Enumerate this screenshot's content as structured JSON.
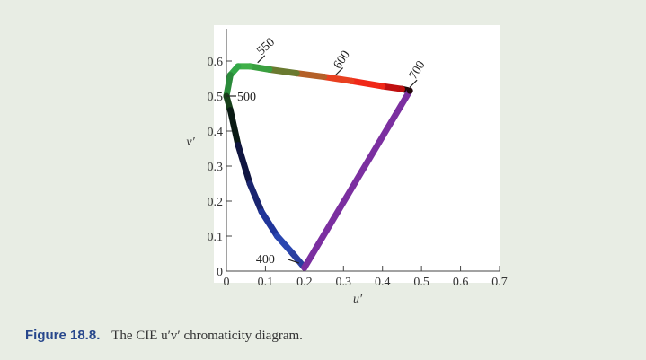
{
  "caption": {
    "figure_number": "Figure 18.8.",
    "text": "The CIE u′v′ chromaticity diagram."
  },
  "colors": {
    "page_background": "#e8ede4",
    "plot_background": "#ffffff",
    "caption_number": "#27478c",
    "line_of_purples": "#7b2fa0"
  },
  "chart_data": {
    "type": "line",
    "title": "",
    "xlabel": "u′",
    "ylabel": "v′",
    "xlim": [
      0,
      0.7
    ],
    "ylim": [
      0,
      0.6
    ],
    "x_ticks": [
      "0",
      "0.1",
      "0.2",
      "0.3",
      "0.4",
      "0.5",
      "0.6",
      "0.7"
    ],
    "y_ticks": [
      "0",
      "0.1",
      "0.2",
      "0.3",
      "0.4",
      "0.5",
      "0.6"
    ],
    "grid": false,
    "series": [
      {
        "points": [
          {
            "u": 0.2,
            "v": 0.01,
            "color": "#7b2fa0"
          },
          {
            "u": 0.17,
            "v": 0.05,
            "color": "#2a3fa0"
          },
          {
            "u": 0.13,
            "v": 0.1,
            "color": "#2a46b0"
          },
          {
            "u": 0.09,
            "v": 0.17,
            "color": "#20359a"
          },
          {
            "u": 0.06,
            "v": 0.25,
            "color": "#1a2570"
          },
          {
            "u": 0.03,
            "v": 0.36,
            "color": "#101540"
          },
          {
            "u": 0.01,
            "v": 0.46,
            "color": "#0a1a14"
          },
          {
            "u": 0.0,
            "v": 0.5,
            "color": "#18401a"
          },
          {
            "u": 0.01,
            "v": 0.56,
            "color": "#2a8a3a"
          },
          {
            "u": 0.03,
            "v": 0.585,
            "color": "#33a848"
          },
          {
            "u": 0.06,
            "v": 0.585,
            "color": "#40b048"
          },
          {
            "u": 0.11,
            "v": 0.576,
            "color": "#3aa040"
          },
          {
            "u": 0.18,
            "v": 0.565,
            "color": "#6a7a30"
          },
          {
            "u": 0.25,
            "v": 0.555,
            "color": "#b46028"
          },
          {
            "u": 0.32,
            "v": 0.543,
            "color": "#e84020"
          },
          {
            "u": 0.4,
            "v": 0.528,
            "color": "#f02818"
          },
          {
            "u": 0.45,
            "v": 0.52,
            "color": "#c01010"
          },
          {
            "u": 0.47,
            "v": 0.515,
            "color": "#200808"
          },
          {
            "u": 0.2,
            "v": 0.01,
            "color": "#7b2fa0"
          }
        ]
      }
    ],
    "wavelength_labels": [
      {
        "text": "400",
        "u": 0.2,
        "v": 0.01
      },
      {
        "text": "500",
        "u": 0.0,
        "v": 0.5
      },
      {
        "text": "550",
        "u": 0.08,
        "v": 0.585
      },
      {
        "text": "600",
        "u": 0.28,
        "v": 0.55
      },
      {
        "text": "700",
        "u": 0.47,
        "v": 0.515
      }
    ]
  }
}
